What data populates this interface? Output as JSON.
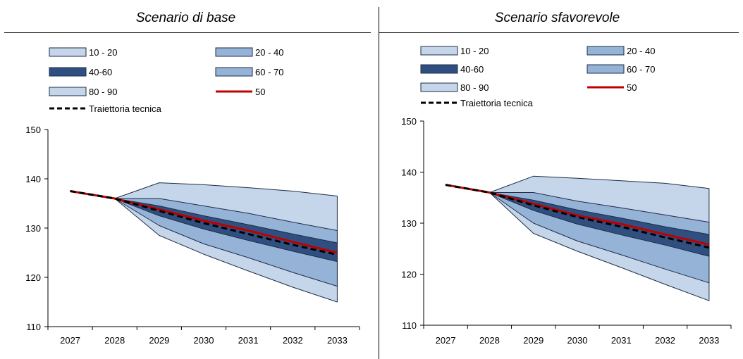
{
  "panels": [
    {
      "title": "Scenario di base"
    },
    {
      "title": "Scenario sfavorevole"
    }
  ],
  "colors": {
    "band_outer": "#c5d5ea",
    "band_mid": "#95b3d7",
    "band_inner": "#2f4f80",
    "band_stroke": "#1f2d46",
    "median": "#c00000",
    "technical": "#000000",
    "axis": "#000000"
  },
  "legend": [
    {
      "label": "10 - 20",
      "kind": "box",
      "color_key": "band_outer"
    },
    {
      "label": "20 - 40",
      "kind": "box",
      "color_key": "band_mid"
    },
    {
      "label": "40-60",
      "kind": "box",
      "color_key": "band_inner"
    },
    {
      "label": "60 - 70",
      "kind": "box",
      "color_key": "band_mid"
    },
    {
      "label": "80 - 90",
      "kind": "box",
      "color_key": "band_outer"
    },
    {
      "label": "50",
      "kind": "line",
      "color_key": "median"
    },
    {
      "label": "Traiettoria tecnica",
      "kind": "dash",
      "color_key": "technical"
    }
  ],
  "chart_data": [
    {
      "type": "area",
      "title": "Scenario di base",
      "categories": [
        "2027",
        "2028",
        "2029",
        "2030",
        "2031",
        "2032",
        "2033"
      ],
      "ylim": [
        110,
        150
      ],
      "yticks": [
        110,
        120,
        130,
        140,
        150
      ],
      "grid": false,
      "legend_position": "top",
      "series": [
        {
          "name": "10",
          "values": [
            137.5,
            136.0,
            128.5,
            124.7,
            121.3,
            118.0,
            115.0
          ]
        },
        {
          "name": "20",
          "values": [
            137.5,
            136.0,
            130.5,
            126.8,
            124.0,
            121.0,
            118.2
          ]
        },
        {
          "name": "40",
          "values": [
            137.5,
            136.0,
            132.5,
            129.8,
            127.5,
            125.3,
            123.2
          ]
        },
        {
          "name": "50",
          "values": [
            137.5,
            136.0,
            133.8,
            131.5,
            129.5,
            127.2,
            125.0
          ]
        },
        {
          "name": "60",
          "values": [
            137.5,
            136.0,
            134.5,
            132.5,
            130.7,
            128.8,
            127.0
          ]
        },
        {
          "name": "70",
          "values": [
            137.5,
            136.0,
            136.0,
            134.5,
            133.0,
            131.2,
            129.5
          ]
        },
        {
          "name": "90",
          "values": [
            137.5,
            136.0,
            139.2,
            138.8,
            138.2,
            137.5,
            136.5
          ]
        },
        {
          "name": "Traiettoria tecnica",
          "values": [
            137.5,
            136.0,
            133.5,
            131.0,
            128.8,
            126.6,
            124.6
          ]
        }
      ]
    },
    {
      "type": "area",
      "title": "Scenario sfavorevole",
      "categories": [
        "2027",
        "2028",
        "2029",
        "2030",
        "2031",
        "2032",
        "2033"
      ],
      "ylim": [
        110,
        150
      ],
      "yticks": [
        110,
        120,
        130,
        140,
        150
      ],
      "grid": false,
      "legend_position": "top",
      "series": [
        {
          "name": "10",
          "values": [
            137.5,
            136.0,
            128.0,
            124.5,
            121.3,
            118.0,
            114.8
          ]
        },
        {
          "name": "20",
          "values": [
            137.5,
            136.0,
            130.0,
            126.5,
            123.8,
            121.0,
            118.3
          ]
        },
        {
          "name": "40",
          "values": [
            137.5,
            136.0,
            132.5,
            129.8,
            127.7,
            125.7,
            123.5
          ]
        },
        {
          "name": "50",
          "values": [
            137.5,
            136.0,
            133.8,
            131.5,
            129.8,
            127.8,
            125.8
          ]
        },
        {
          "name": "60",
          "values": [
            137.5,
            136.0,
            134.5,
            132.6,
            131.0,
            129.3,
            127.8
          ]
        },
        {
          "name": "70",
          "values": [
            137.5,
            136.0,
            136.0,
            134.3,
            133.0,
            131.6,
            130.2
          ]
        },
        {
          "name": "90",
          "values": [
            137.5,
            136.0,
            139.2,
            138.8,
            138.3,
            137.8,
            136.8
          ]
        },
        {
          "name": "Traiettoria tecnica",
          "values": [
            137.5,
            136.0,
            133.5,
            131.2,
            129.3,
            127.2,
            125.2
          ]
        }
      ]
    }
  ]
}
